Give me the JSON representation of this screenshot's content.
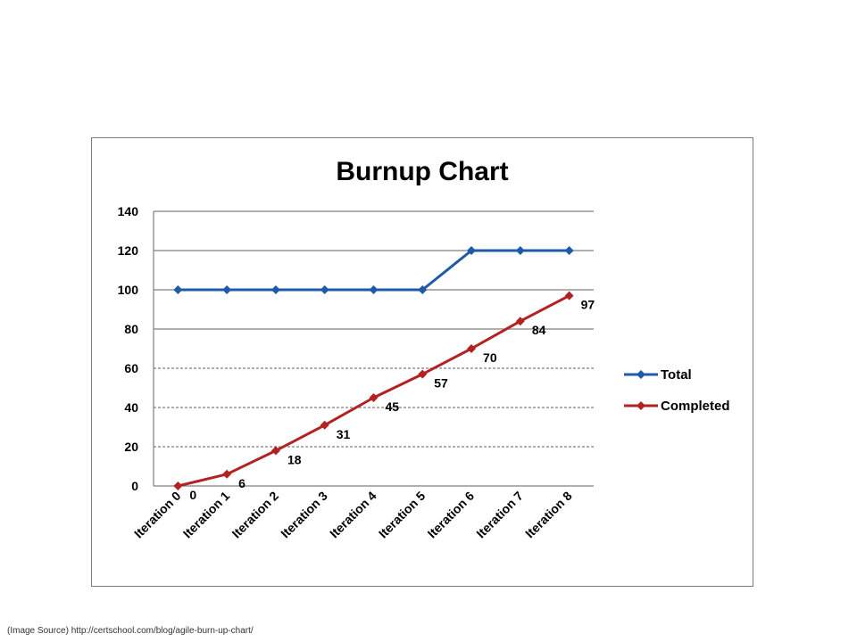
{
  "caption": "(Image Source) http://certschool.com/blog/agile-burn-up-chart/",
  "chart_data": {
    "type": "line",
    "title": "Burnup Chart",
    "xlabel": "",
    "ylabel": "",
    "categories": [
      "Iteration 0",
      "Iteration 1",
      "Iteration 2",
      "Iteration 3",
      "Iteration 4",
      "Iteration 5",
      "Iteration 6",
      "Iteration 7",
      "Iteration 8"
    ],
    "ylim": [
      0,
      140
    ],
    "yticks": [
      "0",
      "20",
      "40",
      "60",
      "80",
      "100",
      "120",
      "140"
    ],
    "grid": "horizontal",
    "legend_position": "right",
    "series": [
      {
        "name": "Total",
        "color": "#1f5aa8",
        "marker": "diamond",
        "values": [
          100,
          100,
          100,
          100,
          100,
          100,
          120,
          120,
          120
        ],
        "data_labels": false
      },
      {
        "name": "Completed",
        "color": "#b22222",
        "marker": "diamond",
        "values": [
          0,
          6,
          18,
          31,
          45,
          57,
          70,
          84,
          97
        ],
        "data_labels": true,
        "labels": [
          "0",
          "6",
          "18",
          "31",
          "45",
          "57",
          "70",
          "84",
          "97"
        ]
      }
    ]
  }
}
